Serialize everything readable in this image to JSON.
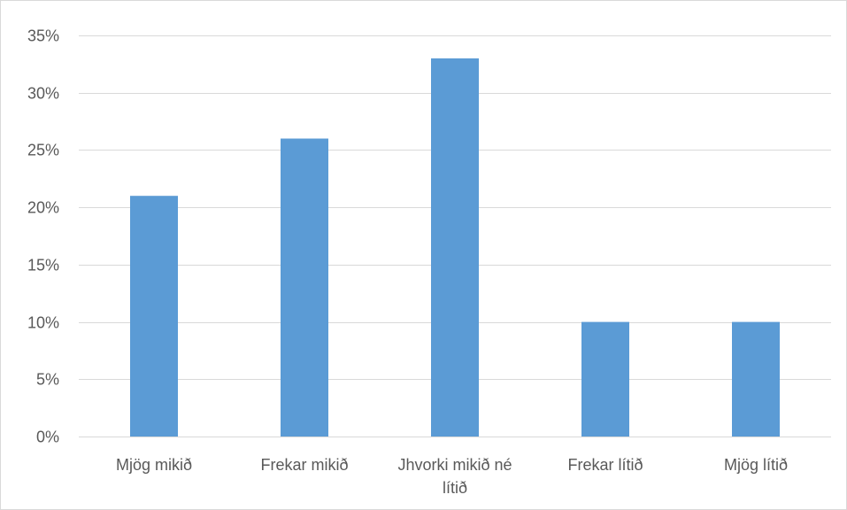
{
  "chart_data": {
    "type": "bar",
    "title": "",
    "xlabel": "",
    "ylabel": "",
    "categories": [
      [
        "Mjög mikið"
      ],
      [
        "Frekar mikið"
      ],
      [
        "Jhvorki mikið né",
        "lítið"
      ],
      [
        "Frekar lítið"
      ],
      [
        "Mjög lítið"
      ]
    ],
    "values": [
      21,
      26,
      33,
      10,
      10
    ],
    "value_unit": "%",
    "ylim": [
      0,
      35
    ],
    "yticks": [
      0,
      5,
      10,
      15,
      20,
      25,
      30,
      35
    ],
    "ytick_labels": [
      "0%",
      "5%",
      "10%",
      "15%",
      "20%",
      "25%",
      "30%",
      "35%"
    ],
    "grid": true,
    "legend": "none",
    "bar_color": "#5b9bd5",
    "grid_color": "#d9d9d9",
    "label_color": "#595959"
  }
}
